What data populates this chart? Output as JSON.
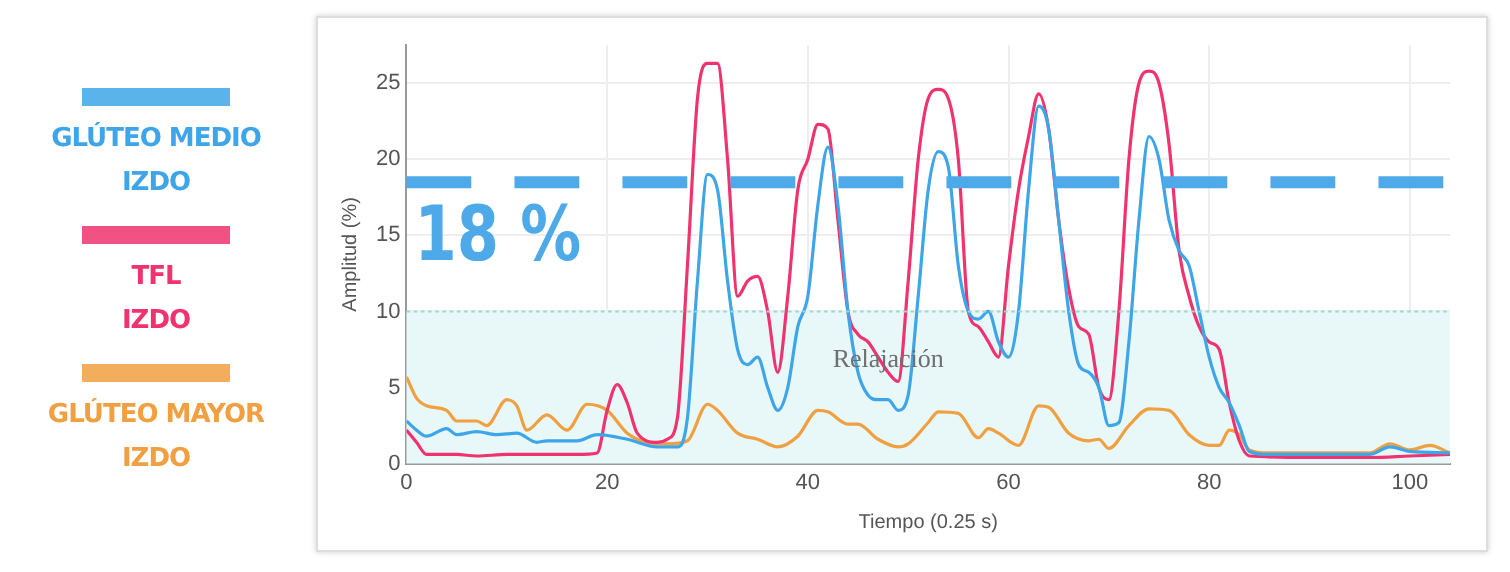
{
  "chart_data": {
    "type": "line",
    "xlabel": "Tiempo (0.25 s)",
    "ylabel": "Amplitud (%)",
    "xlim": [
      0,
      104
    ],
    "xticks": [
      0,
      20,
      40,
      60,
      80,
      100
    ],
    "ylim": [
      0,
      27.5
    ],
    "yticks": [
      0,
      5,
      10,
      15,
      20,
      25
    ],
    "grid": true,
    "legend": "left",
    "marker": "none",
    "line_style": "solid",
    "ref_lines": [
      {
        "axis": "y",
        "value": 18.5,
        "label": "18 %",
        "color": "#4ea9e8",
        "line_style": "dashed"
      },
      {
        "axis": "y",
        "value": 10,
        "color": "#9fd6d6",
        "line_style": "dotted"
      }
    ],
    "bands": [
      {
        "axis": "y",
        "from": 0,
        "to": 10,
        "label": "Relajación",
        "color": "#e8f7f8"
      }
    ],
    "series": [
      {
        "name": "GLÚTEO MEDIO\nIZDO",
        "color": "#3ea6e8",
        "x": [
          0,
          1,
          2,
          4,
          5,
          7,
          9,
          11,
          13,
          14,
          17,
          19,
          22,
          25,
          27,
          28,
          29,
          30,
          31,
          32,
          33,
          34,
          35,
          36,
          37,
          38,
          39,
          40,
          41,
          42,
          43,
          44,
          45,
          46,
          47,
          48,
          49,
          50,
          51,
          52,
          53,
          54,
          55,
          56,
          57,
          58,
          59,
          60,
          61,
          62,
          63,
          64,
          65,
          66,
          67,
          68,
          69,
          70,
          71,
          72,
          73,
          74,
          75,
          76,
          77,
          78,
          79,
          80,
          81,
          82,
          83,
          84,
          86,
          90,
          96,
          98,
          100,
          104
        ],
        "values": [
          2.8,
          2.2,
          1.8,
          2.3,
          1.9,
          2.1,
          1.9,
          2.0,
          1.4,
          1.5,
          1.5,
          1.9,
          1.6,
          1.1,
          1.1,
          3,
          12,
          19,
          18,
          12,
          7.5,
          6.5,
          7,
          5,
          3.5,
          5,
          9,
          11,
          17,
          20.8,
          17,
          10,
          6,
          4.5,
          4.2,
          4.2,
          3.5,
          4.5,
          11,
          18,
          20.5,
          19.5,
          13,
          10,
          9.5,
          10,
          8,
          7,
          10,
          18,
          23.5,
          22,
          16,
          10,
          6.5,
          6,
          5,
          2.5,
          2.7,
          8,
          16,
          21.5,
          20,
          16,
          14,
          13,
          10,
          7,
          5,
          4,
          2.5,
          0.8,
          0.6,
          0.6,
          0.6,
          1.1,
          0.8,
          0.7
        ]
      },
      {
        "name": "TFL\nIZDO",
        "color": "#f0336f",
        "x": [
          0,
          1,
          2,
          5,
          7,
          10,
          14,
          17,
          19,
          20,
          21,
          22,
          23,
          25,
          26,
          27,
          28,
          29,
          30,
          31,
          32,
          33,
          34,
          35,
          36,
          37,
          38,
          39,
          40,
          41,
          42,
          43,
          44,
          45,
          46,
          47,
          48,
          49,
          50,
          51,
          52,
          53,
          54,
          55,
          56,
          57,
          58,
          59,
          60,
          61,
          62,
          63,
          64,
          65,
          66,
          67,
          68,
          69,
          70,
          71,
          72,
          73,
          74,
          75,
          76,
          77,
          78,
          79,
          80,
          81,
          82,
          83,
          84,
          90,
          96,
          100,
          104
        ],
        "values": [
          2.2,
          1.4,
          0.6,
          0.6,
          0.5,
          0.6,
          0.6,
          0.6,
          0.7,
          3.5,
          5.2,
          4,
          2,
          1.4,
          1.6,
          3,
          13,
          24,
          26.3,
          26.3,
          20,
          11,
          12,
          12.3,
          10,
          6,
          11,
          18,
          20,
          22.3,
          22,
          16,
          10,
          8.5,
          8,
          7,
          6,
          5.4,
          12,
          20,
          24,
          24.6,
          24,
          20,
          10,
          9,
          8,
          7,
          13,
          18,
          21.5,
          24.3,
          22,
          16,
          11.5,
          9,
          8.5,
          5,
          4.2,
          10,
          20,
          25,
          25.8,
          25,
          21,
          14,
          11,
          9,
          8,
          7.5,
          4,
          1.5,
          0.5,
          0.4,
          0.4,
          0.5,
          0.6
        ]
      },
      {
        "name": "GLÚTEO MAYOR\nIZDO",
        "color": "#f0a040",
        "x": [
          0,
          1,
          2,
          4,
          5,
          7,
          8,
          10,
          11,
          12,
          14,
          16,
          18,
          20,
          22,
          24,
          26,
          28,
          30,
          31,
          33,
          35,
          37,
          39,
          41,
          42,
          44,
          45,
          47,
          49,
          50,
          52,
          53,
          55,
          57,
          58,
          59,
          61,
          63,
          64,
          66,
          68,
          69,
          70,
          72,
          74,
          76,
          78,
          80,
          81,
          82,
          83,
          84,
          86,
          90,
          96,
          98,
          100,
          102,
          104
        ],
        "values": [
          5.7,
          4.3,
          3.8,
          3.5,
          2.8,
          2.8,
          2.5,
          4.2,
          3.8,
          2.2,
          3.2,
          2.2,
          3.9,
          3.5,
          2.0,
          1.4,
          1.3,
          1.5,
          3.9,
          3.5,
          2,
          1.6,
          1.1,
          1.8,
          3.5,
          3.4,
          2.6,
          2.6,
          1.6,
          1.1,
          1.3,
          2.7,
          3.4,
          3.3,
          1.7,
          2.3,
          2.0,
          1.2,
          3.8,
          3.7,
          2.0,
          1.5,
          1.6,
          1.0,
          2.5,
          3.6,
          3.5,
          1.9,
          1.2,
          1.2,
          2.2,
          1.9,
          0.9,
          0.7,
          0.7,
          0.7,
          1.3,
          0.9,
          1.2,
          0.7
        ]
      }
    ]
  }
}
